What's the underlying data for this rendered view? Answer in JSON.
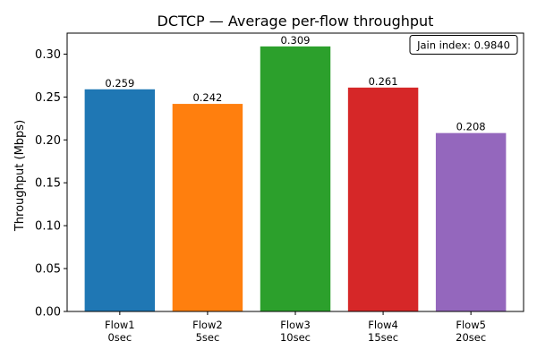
{
  "chart_data": {
    "type": "bar",
    "title": "DCTCP — Average per-flow throughput",
    "xlabel": "",
    "ylabel": "Throughput (Mbps)",
    "categories": [
      [
        "Flow1",
        "0sec"
      ],
      [
        "Flow2",
        "5sec"
      ],
      [
        "Flow3",
        "10sec"
      ],
      [
        "Flow4",
        "15sec"
      ],
      [
        "Flow5",
        "20sec"
      ]
    ],
    "values": [
      0.259,
      0.242,
      0.309,
      0.261,
      0.208
    ],
    "value_labels": [
      "0.259",
      "0.242",
      "0.309",
      "0.261",
      "0.208"
    ],
    "colors": [
      "#1f77b4",
      "#ff7f0e",
      "#2ca02c",
      "#d62728",
      "#9467bd"
    ],
    "yticks": [
      0.0,
      0.05,
      0.1,
      0.15,
      0.2,
      0.25,
      0.3
    ],
    "ytick_labels": [
      "0.00",
      "0.05",
      "0.10",
      "0.15",
      "0.20",
      "0.25",
      "0.30"
    ],
    "ylim": [
      0,
      0.3245
    ],
    "grid": false,
    "annotation": {
      "text": "Jain index: 0.9840",
      "placement": "top-right"
    }
  }
}
